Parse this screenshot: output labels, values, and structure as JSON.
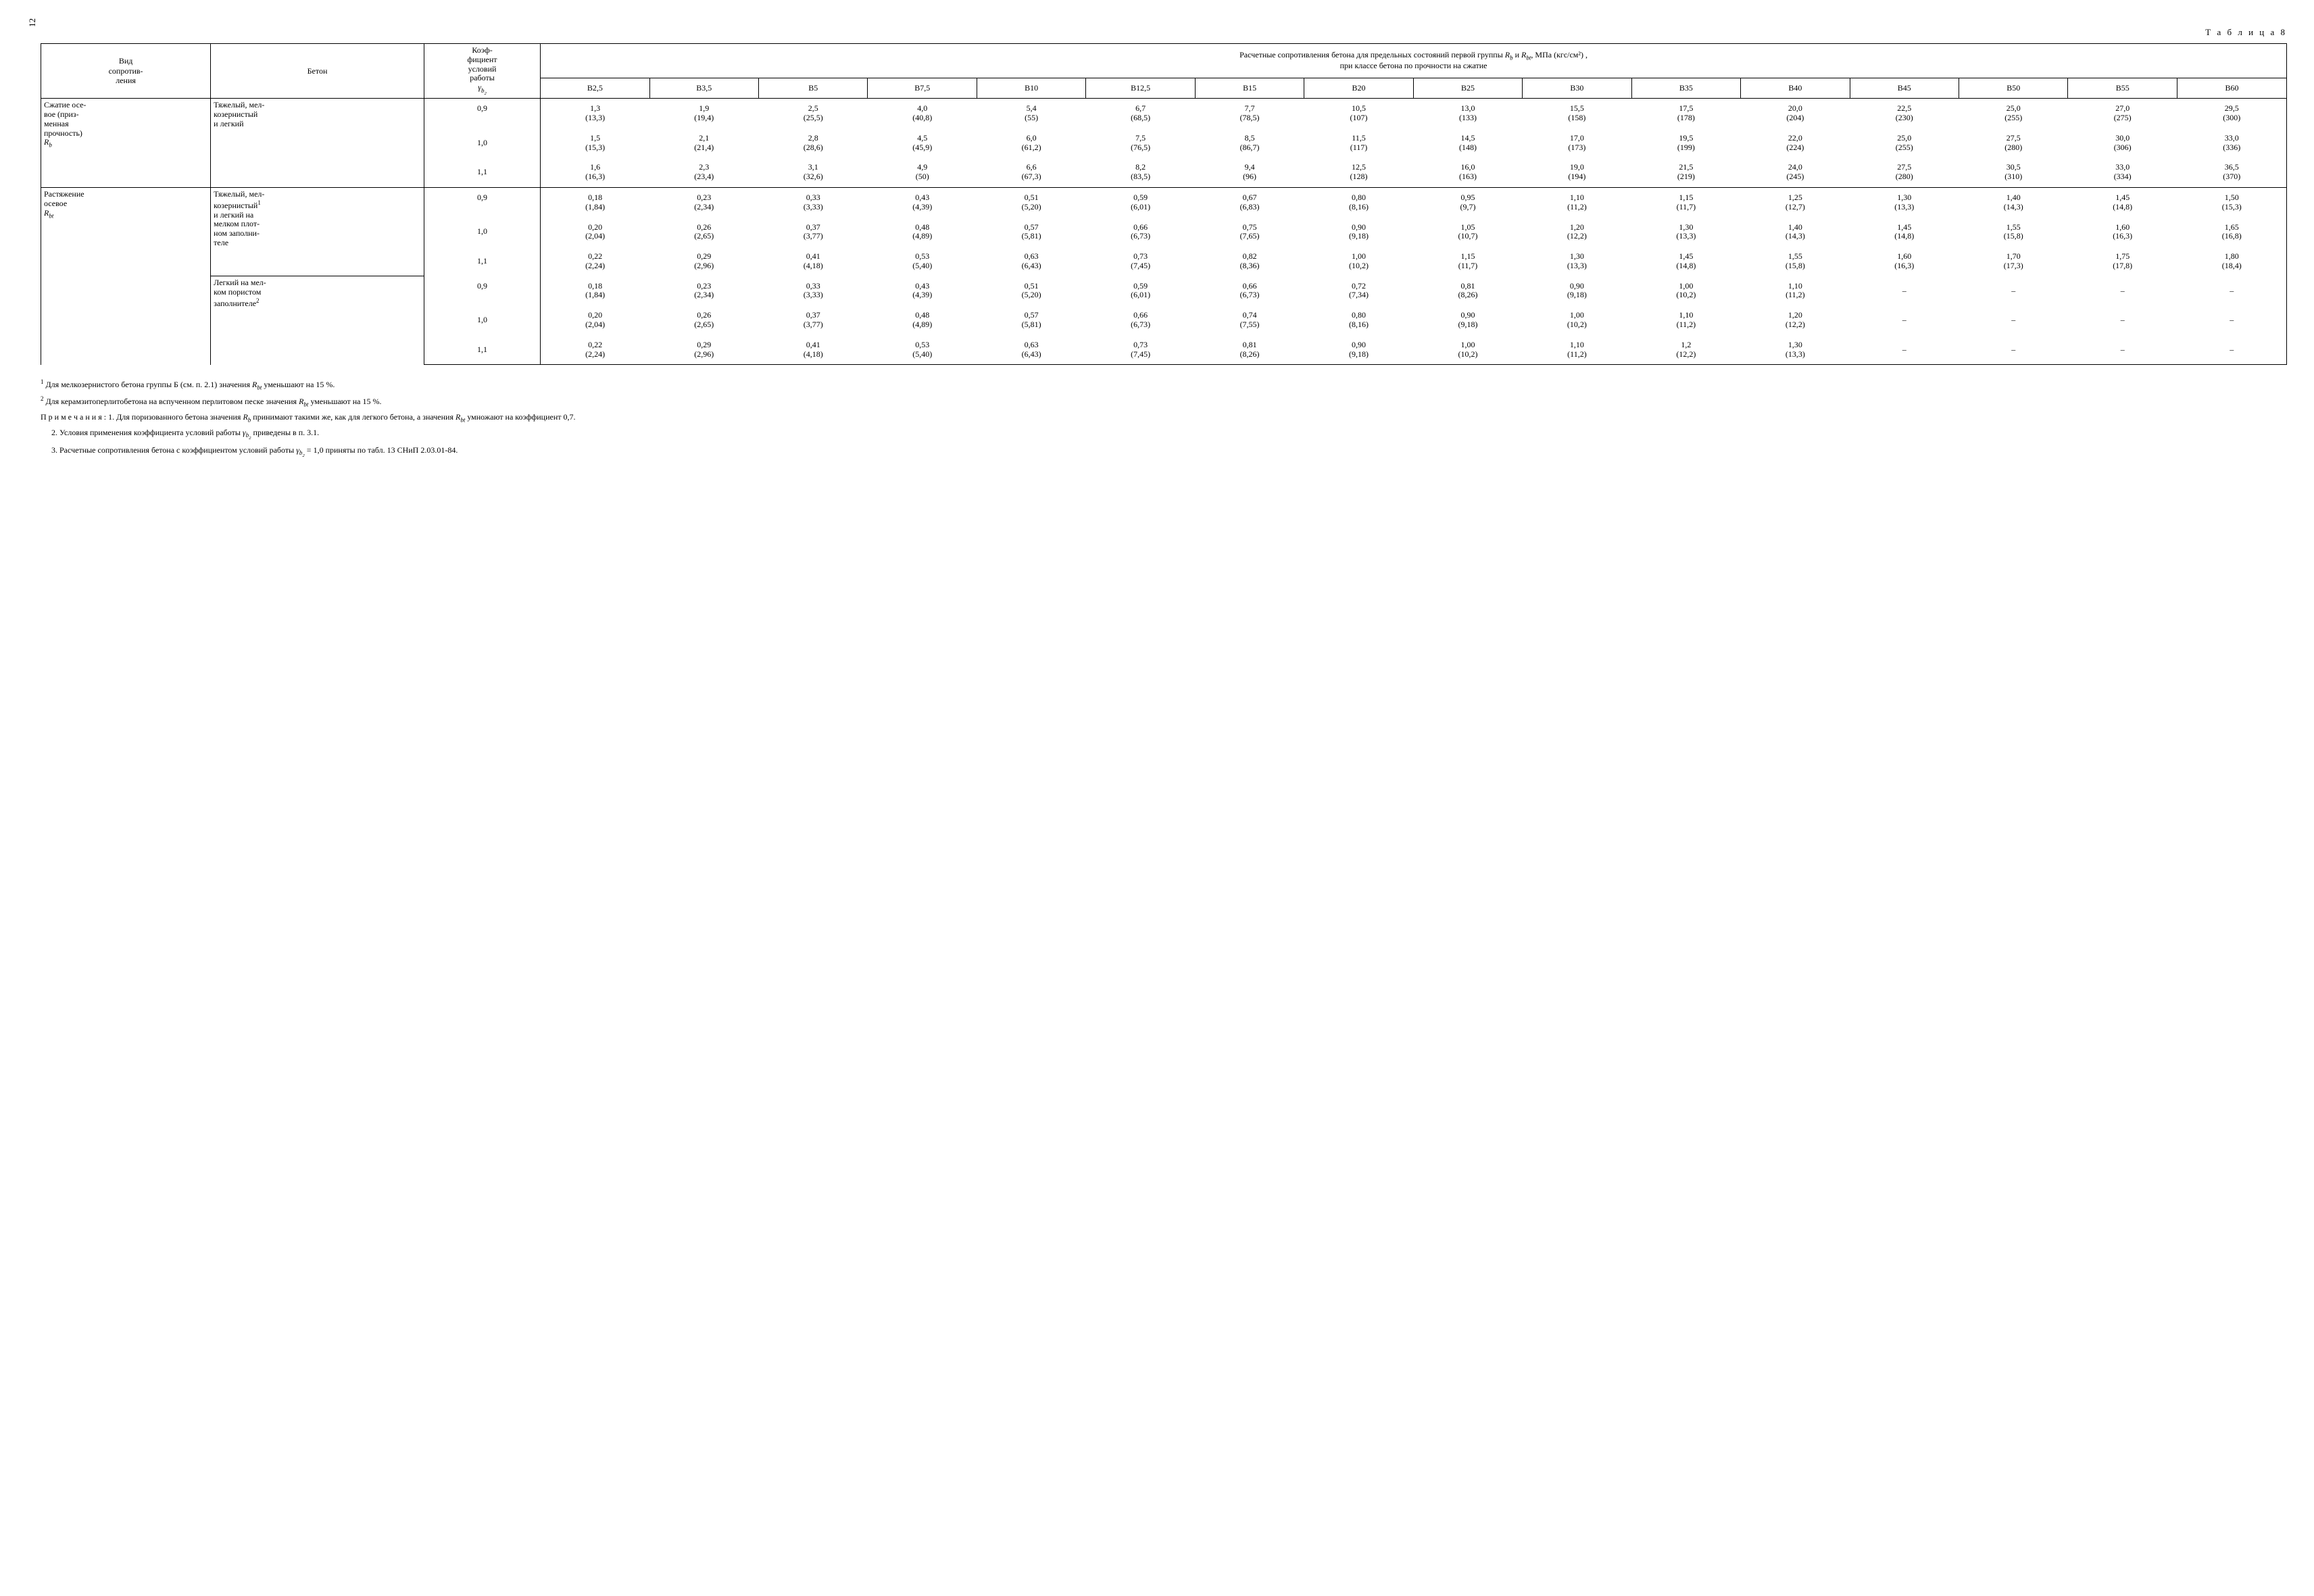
{
  "page_number": "12",
  "table_label": "Т а б л и ц а 8",
  "header": {
    "vid": "Вид\nсопротив-\nления",
    "beton": "Бетон",
    "coef_l1": "Коэф-",
    "coef_l2": "фициент",
    "coef_l3": "условий",
    "coef_l4": "работы",
    "coef_sym": "γ",
    "span_title_l1": "Расчетные сопротивления бетона для предельных состояний первой группы ",
    "span_title_r": "R",
    "span_title_and": " и ",
    "span_title_unit": ", МПа (кгс/см²) ,",
    "span_title_l2": "при классе бетона по прочности на сжатие"
  },
  "classes": [
    "B2,5",
    "B3,5",
    "B5",
    "B7,5",
    "B10",
    "B12,5",
    "B15",
    "B20",
    "B25",
    "B30",
    "B35",
    "B40",
    "B45",
    "B50",
    "B55",
    "B60"
  ],
  "sections": [
    {
      "vid_html": "Сжатие осе-\nвое (приз-\nменная\nпрочность)\nR_b",
      "vid_lines": [
        "Сжатие осе-",
        "вое (приз-",
        "менная",
        "прочность)"
      ],
      "vid_sym": "R",
      "vid_sub": "b",
      "groups": [
        {
          "beton_lines": [
            "Тяжелый, мел-",
            "козернистый",
            "и легкий"
          ],
          "beton_sup": "",
          "rows": [
            {
              "coef": "0,9",
              "vals": [
                [
                  "1,3",
                  "(13,3)"
                ],
                [
                  "1,9",
                  "(19,4)"
                ],
                [
                  "2,5",
                  "(25,5)"
                ],
                [
                  "4,0",
                  "(40,8)"
                ],
                [
                  "5,4",
                  "(55)"
                ],
                [
                  "6,7",
                  "(68,5)"
                ],
                [
                  "7,7",
                  "(78,5)"
                ],
                [
                  "10,5",
                  "(107)"
                ],
                [
                  "13,0",
                  "(133)"
                ],
                [
                  "15,5",
                  "(158)"
                ],
                [
                  "17,5",
                  "(178)"
                ],
                [
                  "20,0",
                  "(204)"
                ],
                [
                  "22,5",
                  "(230)"
                ],
                [
                  "25,0",
                  "(255)"
                ],
                [
                  "27,0",
                  "(275)"
                ],
                [
                  "29,5",
                  "(300)"
                ]
              ]
            },
            {
              "coef": "1,0",
              "vals": [
                [
                  "1,5",
                  "(15,3)"
                ],
                [
                  "2,1",
                  "(21,4)"
                ],
                [
                  "2,8",
                  "(28,6)"
                ],
                [
                  "4,5",
                  "(45,9)"
                ],
                [
                  "6,0",
                  "(61,2)"
                ],
                [
                  "7,5",
                  "(76,5)"
                ],
                [
                  "8,5",
                  "(86,7)"
                ],
                [
                  "11,5",
                  "(117)"
                ],
                [
                  "14,5",
                  "(148)"
                ],
                [
                  "17,0",
                  "(173)"
                ],
                [
                  "19,5",
                  "(199)"
                ],
                [
                  "22,0",
                  "(224)"
                ],
                [
                  "25,0",
                  "(255)"
                ],
                [
                  "27,5",
                  "(280)"
                ],
                [
                  "30,0",
                  "(306)"
                ],
                [
                  "33,0",
                  "(336)"
                ]
              ]
            },
            {
              "coef": "1,1",
              "vals": [
                [
                  "1,6",
                  "(16,3)"
                ],
                [
                  "2,3",
                  "(23,4)"
                ],
                [
                  "3,1",
                  "(32,6)"
                ],
                [
                  "4,9",
                  "(50)"
                ],
                [
                  "6,6",
                  "(67,3)"
                ],
                [
                  "8,2",
                  "(83,5)"
                ],
                [
                  "9,4",
                  "(96)"
                ],
                [
                  "12,5",
                  "(128)"
                ],
                [
                  "16,0",
                  "(163)"
                ],
                [
                  "19,0",
                  "(194)"
                ],
                [
                  "21,5",
                  "(219)"
                ],
                [
                  "24,0",
                  "(245)"
                ],
                [
                  "27,5",
                  "(280)"
                ],
                [
                  "30,5",
                  "(310)"
                ],
                [
                  "33,0",
                  "(334)"
                ],
                [
                  "36,5",
                  "(370)"
                ]
              ]
            }
          ]
        }
      ]
    },
    {
      "vid_lines": [
        "Растяжение",
        "осевое"
      ],
      "vid_sym": "R",
      "vid_sub": "bt",
      "groups": [
        {
          "beton_lines": [
            "Тяжелый, мел-",
            "козернистый",
            "и легкий на",
            "мелком плот-",
            "ном заполни-",
            "теле"
          ],
          "beton_sup_line_idx": 1,
          "beton_sup": "1",
          "rows": [
            {
              "coef": "0,9",
              "vals": [
                [
                  "0,18",
                  "(1,84)"
                ],
                [
                  "0,23",
                  "(2,34)"
                ],
                [
                  "0,33",
                  "(3,33)"
                ],
                [
                  "0,43",
                  "(4,39)"
                ],
                [
                  "0,51",
                  "(5,20)"
                ],
                [
                  "0,59",
                  "(6,01)"
                ],
                [
                  "0,67",
                  "(6,83)"
                ],
                [
                  "0,80",
                  "(8,16)"
                ],
                [
                  "0,95",
                  "(9,7)"
                ],
                [
                  "1,10",
                  "(11,2)"
                ],
                [
                  "1,15",
                  "(11,7)"
                ],
                [
                  "1,25",
                  "(12,7)"
                ],
                [
                  "1,30",
                  "(13,3)"
                ],
                [
                  "1,40",
                  "(14,3)"
                ],
                [
                  "1,45",
                  "(14,8)"
                ],
                [
                  "1,50",
                  "(15,3)"
                ]
              ]
            },
            {
              "coef": "1,0",
              "vals": [
                [
                  "0,20",
                  "(2,04)"
                ],
                [
                  "0,26",
                  "(2,65)"
                ],
                [
                  "0,37",
                  "(3,77)"
                ],
                [
                  "0,48",
                  "(4,89)"
                ],
                [
                  "0,57",
                  "(5,81)"
                ],
                [
                  "0,66",
                  "(6,73)"
                ],
                [
                  "0,75",
                  "(7,65)"
                ],
                [
                  "0,90",
                  "(9,18)"
                ],
                [
                  "1,05",
                  "(10,7)"
                ],
                [
                  "1,20",
                  "(12,2)"
                ],
                [
                  "1,30",
                  "(13,3)"
                ],
                [
                  "1,40",
                  "(14,3)"
                ],
                [
                  "1,45",
                  "(14,8)"
                ],
                [
                  "1,55",
                  "(15,8)"
                ],
                [
                  "1,60",
                  "(16,3)"
                ],
                [
                  "1,65",
                  "(16,8)"
                ]
              ]
            },
            {
              "coef": "1,1",
              "vals": [
                [
                  "0,22",
                  "(2,24)"
                ],
                [
                  "0,29",
                  "(2,96)"
                ],
                [
                  "0,41",
                  "(4,18)"
                ],
                [
                  "0,53",
                  "(5,40)"
                ],
                [
                  "0,63",
                  "(6,43)"
                ],
                [
                  "0,73",
                  "(7,45)"
                ],
                [
                  "0,82",
                  "(8,36)"
                ],
                [
                  "1,00",
                  "(10,2)"
                ],
                [
                  "1,15",
                  "(11,7)"
                ],
                [
                  "1,30",
                  "(13,3)"
                ],
                [
                  "1,45",
                  "(14,8)"
                ],
                [
                  "1,55",
                  "(15,8)"
                ],
                [
                  "1,60",
                  "(16,3)"
                ],
                [
                  "1,70",
                  "(17,3)"
                ],
                [
                  "1,75",
                  "(17,8)"
                ],
                [
                  "1,80",
                  "(18,4)"
                ]
              ]
            }
          ]
        },
        {
          "beton_lines": [
            "Легкий на мел-",
            "ком пористом",
            "заполнителе"
          ],
          "beton_sup_line_idx": 2,
          "beton_sup": "2",
          "rows": [
            {
              "coef": "0,9",
              "vals": [
                [
                  "0,18",
                  "(1,84)"
                ],
                [
                  "0,23",
                  "(2,34)"
                ],
                [
                  "0,33",
                  "(3,33)"
                ],
                [
                  "0,43",
                  "(4,39)"
                ],
                [
                  "0,51",
                  "(5,20)"
                ],
                [
                  "0,59",
                  "(6,01)"
                ],
                [
                  "0,66",
                  "(6,73)"
                ],
                [
                  "0,72",
                  "(7,34)"
                ],
                [
                  "0,81",
                  "(8,26)"
                ],
                [
                  "0,90",
                  "(9,18)"
                ],
                [
                  "1,00",
                  "(10,2)"
                ],
                [
                  "1,10",
                  "(11,2)"
                ],
                [
                  "–",
                  ""
                ],
                [
                  "–",
                  ""
                ],
                [
                  "–",
                  ""
                ],
                [
                  "–",
                  ""
                ]
              ]
            },
            {
              "coef": "1,0",
              "vals": [
                [
                  "0,20",
                  "(2,04)"
                ],
                [
                  "0,26",
                  "(2,65)"
                ],
                [
                  "0,37",
                  "(3,77)"
                ],
                [
                  "0,48",
                  "(4,89)"
                ],
                [
                  "0,57",
                  "(5,81)"
                ],
                [
                  "0,66",
                  "(6,73)"
                ],
                [
                  "0,74",
                  "(7,55)"
                ],
                [
                  "0,80",
                  "(8,16)"
                ],
                [
                  "0,90",
                  "(9,18)"
                ],
                [
                  "1,00",
                  "(10,2)"
                ],
                [
                  "1,10",
                  "(11,2)"
                ],
                [
                  "1,20",
                  "(12,2)"
                ],
                [
                  "–",
                  ""
                ],
                [
                  "–",
                  ""
                ],
                [
                  "–",
                  ""
                ],
                [
                  "–",
                  ""
                ]
              ]
            },
            {
              "coef": "1,1",
              "vals": [
                [
                  "0,22",
                  "(2,24)"
                ],
                [
                  "0,29",
                  "(2,96)"
                ],
                [
                  "0,41",
                  "(4,18)"
                ],
                [
                  "0,53",
                  "(5,40)"
                ],
                [
                  "0,63",
                  "(6,43)"
                ],
                [
                  "0,73",
                  "(7,45)"
                ],
                [
                  "0,81",
                  "(8,26)"
                ],
                [
                  "0,90",
                  "(9,18)"
                ],
                [
                  "1,00",
                  "(10,2)"
                ],
                [
                  "1,10",
                  "(11,2)"
                ],
                [
                  "1,2",
                  "(12,2)"
                ],
                [
                  "1,30",
                  "(13,3)"
                ],
                [
                  "–",
                  ""
                ],
                [
                  "–",
                  ""
                ],
                [
                  "–",
                  ""
                ],
                [
                  "–",
                  ""
                ]
              ]
            }
          ]
        }
      ]
    }
  ],
  "footnotes": {
    "f1_a": " Для мелкозернистого бетона группы Б (см. п. 2.1) значения ",
    "f1_b": " уменьшают на 15 %.",
    "f2_a": " Для керамзитоперлитобетона на вспученном перлитовом песке значения ",
    "f2_b": " уменьшают на 15 %.",
    "n_label": "П р и м е ч а н и я : ",
    "n1_a": "1. Для поризованного бетона значения ",
    "n1_b": " принимают такими же, как для легкого бетона, а значения ",
    "n1_c": " умножают на коэффициент 0,7.",
    "n2_a": "2. Условия применения коэффициента условий работы ",
    "n2_b": " приведены в п. 3.1.",
    "n3_a": "3. Расчетные сопротивления бетона с коэффициентом условий работы ",
    "n3_b": " = 1,0 приняты по табл. 13 СНиП 2.03.01-84."
  }
}
